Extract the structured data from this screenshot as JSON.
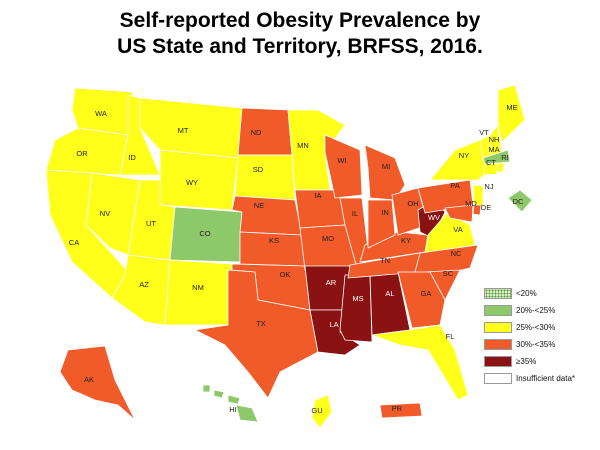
{
  "title": {
    "line1": "Self-reported Obesity Prevalence by",
    "line2": "US State and Territory, BRFSS, 2016."
  },
  "colors": {
    "lt20": "#d4ecc4",
    "20to25": "#8dc96a",
    "25to30": "#ffff1a",
    "30to35": "#f15a29",
    "gte35": "#8b1212",
    "insufficient": "#ffffff"
  },
  "legend": [
    {
      "label": "<20%",
      "key": "lt20"
    },
    {
      "label": "20%-<25%",
      "key": "20to25"
    },
    {
      "label": "25%-<30%",
      "key": "25to30"
    },
    {
      "label": "30%-<35%",
      "key": "30to35"
    },
    {
      "label": "≥35%",
      "key": "gte35"
    },
    {
      "label": "Insufficient data*",
      "key": "insufficient"
    }
  ],
  "states": {
    "WA": "25to30",
    "OR": "25to30",
    "CA": "25to30",
    "NV": "25to30",
    "ID": "25to30",
    "MT": "25to30",
    "WY": "25to30",
    "UT": "25to30",
    "AZ": "25to30",
    "CO": "20to25",
    "NM": "25to30",
    "ND": "30to35",
    "SD": "25to30",
    "NE": "30to35",
    "KS": "30to35",
    "OK": "30to35",
    "TX": "30to35",
    "MN": "25to30",
    "IA": "30to35",
    "MO": "30to35",
    "AR": "gte35",
    "LA": "gte35",
    "WI": "30to35",
    "IL": "30to35",
    "MS": "gte35",
    "AL": "gte35",
    "TN": "30to35",
    "KY": "30to35",
    "IN": "30to35",
    "MI": "30to35",
    "OH": "30to35",
    "WV": "gte35",
    "VA": "25to30",
    "NC": "30to35",
    "SC": "30to35",
    "GA": "30to35",
    "FL": "25to30",
    "PA": "30to35",
    "NY": "25to30",
    "NJ": "25to30",
    "DE": "30to35",
    "MD": "30to35",
    "VT": "25to30",
    "NH": "25to30",
    "ME": "25to30",
    "MA": "20to25",
    "CT": "25to30",
    "RI": "25to30",
    "DC": "20to25",
    "AK": "30to35",
    "HI": "20to25",
    "GU": "25to30",
    "PR": "30to35"
  }
}
